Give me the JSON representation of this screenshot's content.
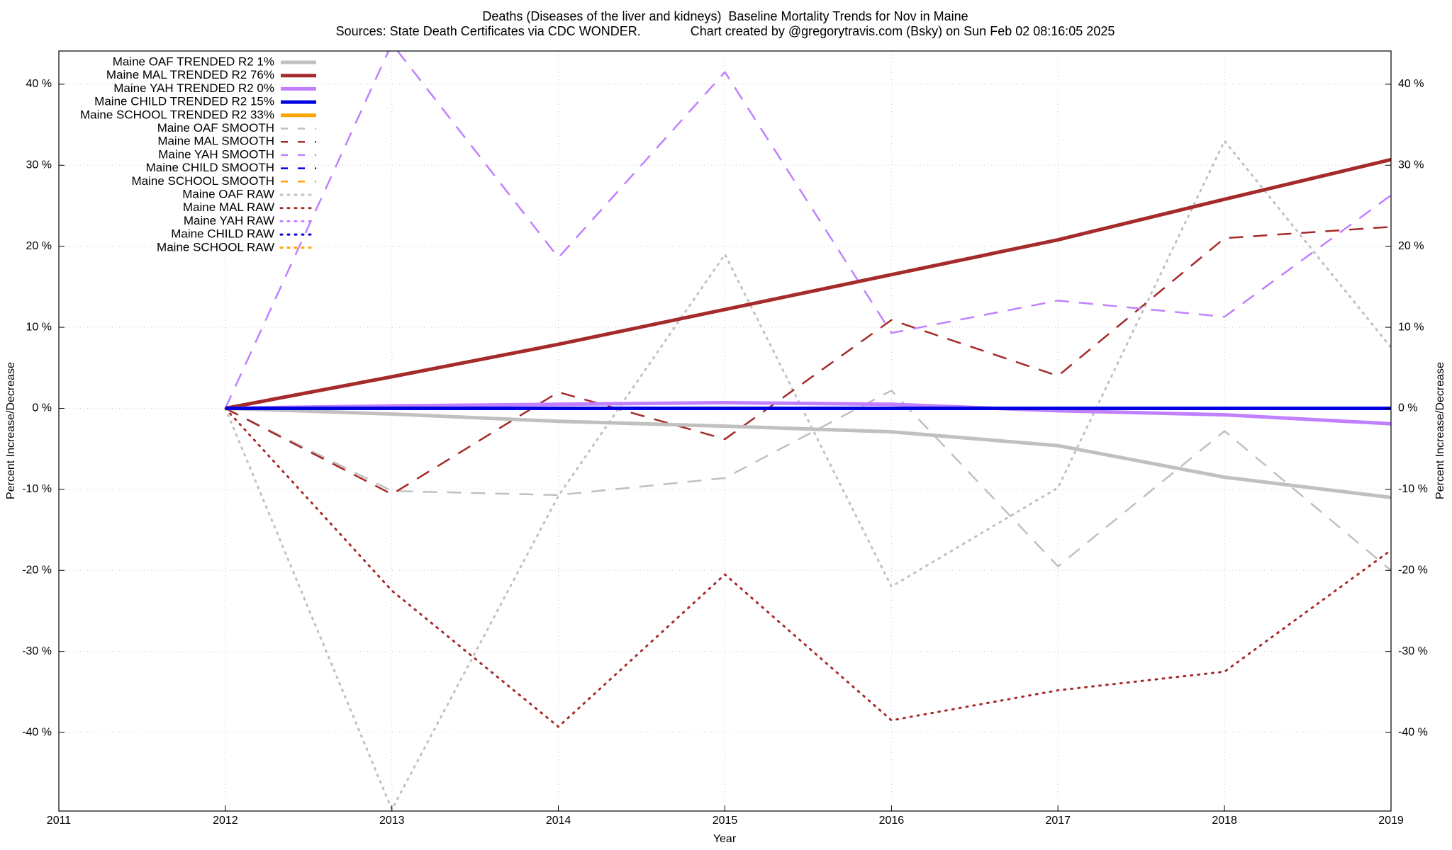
{
  "chart_data": {
    "type": "line",
    "title": "Deaths (Diseases of the liver and kidneys)  Baseline Mortality Trends for Nov in Maine",
    "subtitle": "Sources: State Death Certificates via CDC WONDER.              Chart created by @gregorytravis.com (Bsky) on Sun Feb 02 08:16:05 2025",
    "x_label": "Year",
    "y_label": "Percent Increase/Decrease",
    "y2_label": "Percent Increase/Decrease",
    "x": [
      2012,
      2013,
      2014,
      2015,
      2016,
      2017,
      2018,
      2019
    ],
    "xlim": [
      2011,
      2019
    ],
    "xticks": [
      2011,
      2012,
      2013,
      2014,
      2015,
      2016,
      2017,
      2018,
      2019
    ],
    "ylim": [
      -49.7,
      44.1
    ],
    "yticks": [
      {
        "value": -40,
        "label": "-40 %"
      },
      {
        "value": -30,
        "label": "-30 %"
      },
      {
        "value": -20,
        "label": "-20 %"
      },
      {
        "value": -10,
        "label": "-10 %"
      },
      {
        "value": 0,
        "label": "0 %"
      },
      {
        "value": 10,
        "label": "10 %"
      },
      {
        "value": 20,
        "label": "20 %"
      },
      {
        "value": 30,
        "label": "30 %"
      },
      {
        "value": 40,
        "label": "40 %"
      }
    ],
    "grid": true,
    "legend": "upper left",
    "series": [
      {
        "name": "Maine OAF TRENDED R2  1%",
        "color": "#c0c0c0",
        "style": "solid",
        "values": [
          0,
          -0.7,
          -1.6,
          -2.2,
          -2.9,
          -4.6,
          -8.5,
          -11.0
        ]
      },
      {
        "name": "Maine MAL TRENDED R2  76%",
        "color": "#a52a2a",
        "style": "solid",
        "values": [
          0,
          3.9,
          7.9,
          12.2,
          16.5,
          20.8,
          25.8,
          30.7
        ]
      },
      {
        "name": "Maine YAH TRENDED R2  0%",
        "color": "#c080ff",
        "style": "solid",
        "values": [
          0,
          0.3,
          0.5,
          0.7,
          0.5,
          -0.3,
          -0.8,
          -1.9
        ]
      },
      {
        "name": "Maine CHILD TRENDED R2  15%",
        "color": "#0000e0",
        "style": "solid",
        "values": [
          0,
          0,
          0,
          0,
          0,
          0,
          0,
          0
        ]
      },
      {
        "name": "Maine SCHOOL TRENDED R2  33%",
        "color": "#ffa500",
        "style": "solid",
        "values": [
          null,
          null,
          null,
          null,
          null,
          null,
          null,
          null
        ]
      },
      {
        "name": "Maine OAF SMOOTH",
        "color": "#c0c0c0",
        "style": "dashed",
        "values": [
          0,
          -10.2,
          -10.7,
          -8.6,
          2.2,
          -19.5,
          -2.8,
          -20.0
        ]
      },
      {
        "name": "Maine MAL SMOOTH",
        "color": "#a52a2a",
        "style": "dashed",
        "values": [
          0,
          -10.6,
          2.0,
          -3.8,
          10.9,
          4.0,
          21.0,
          22.4
        ]
      },
      {
        "name": "Maine YAH SMOOTH",
        "color": "#c080ff",
        "style": "dashed",
        "values": [
          0,
          45.0,
          18.6,
          41.5,
          9.3,
          13.3,
          11.3,
          26.3
        ]
      },
      {
        "name": "Maine CHILD SMOOTH",
        "color": "#0000e0",
        "style": "dashed",
        "values": [
          null,
          null,
          null,
          null,
          null,
          null,
          null,
          null
        ]
      },
      {
        "name": "Maine SCHOOL SMOOTH",
        "color": "#ffa500",
        "style": "dashed",
        "values": [
          null,
          null,
          null,
          null,
          null,
          null,
          null,
          null
        ]
      },
      {
        "name": "Maine OAF RAW",
        "color": "#c0c0c0",
        "style": "dotted",
        "values": [
          0,
          -49.5,
          -10.8,
          19.0,
          -22.0,
          -9.8,
          33.0,
          7.5
        ]
      },
      {
        "name": "Maine MAL RAW",
        "color": "#a52a2a",
        "style": "dotted",
        "values": [
          0,
          -22.5,
          -39.3,
          -20.5,
          -38.5,
          -34.8,
          -32.5,
          -17.5
        ]
      },
      {
        "name": "Maine YAH RAW",
        "color": "#c080ff",
        "style": "dotted",
        "values": [
          null,
          null,
          null,
          null,
          null,
          null,
          null,
          null
        ]
      },
      {
        "name": "Maine CHILD RAW",
        "color": "#0000e0",
        "style": "dotted",
        "values": [
          null,
          null,
          null,
          null,
          null,
          null,
          null,
          null
        ]
      },
      {
        "name": "Maine SCHOOL RAW",
        "color": "#ffa500",
        "style": "dotted",
        "values": [
          null,
          null,
          null,
          null,
          null,
          null,
          null,
          null
        ]
      }
    ]
  }
}
